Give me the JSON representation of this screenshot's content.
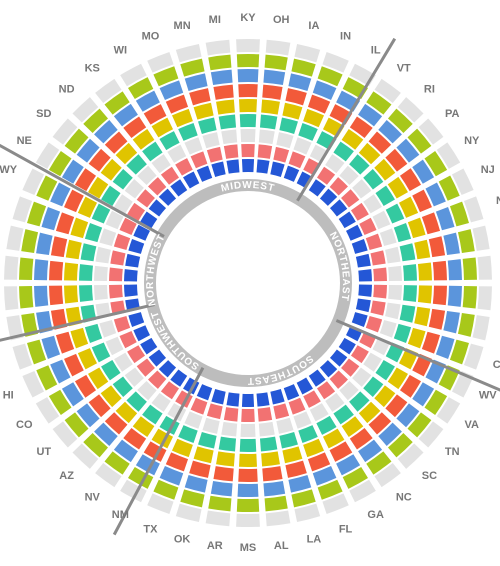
{
  "states": [
    "KY",
    "OH",
    "IA",
    "IN",
    "IL",
    "VT",
    "RI",
    "PA",
    "NY",
    "NJ",
    "N",
    "CT",
    "WV",
    "VA",
    "TN",
    "SC",
    "NC",
    "GA",
    "FL",
    "LA",
    "AL",
    "MS",
    "AR",
    "OK",
    "TX",
    "NM",
    "NV",
    "AZ",
    "UT",
    "CO",
    "HI",
    "WY",
    "NE",
    "SD",
    "ND",
    "KS",
    "WI",
    "MO",
    "MN",
    "MI"
  ],
  "regions": [
    "MIDWEST",
    "NORTHEAST",
    "SOUTHEAST",
    "SOUTHWEST",
    "NORTHWEST"
  ],
  "ring_colors": [
    "#2457d6",
    "#f27272",
    "#e2e2e2",
    "#34c9a0",
    "#e0c400",
    "#f25a3a",
    "#5b95dc",
    "#a8c81a",
    "#e2e2e2"
  ]
}
